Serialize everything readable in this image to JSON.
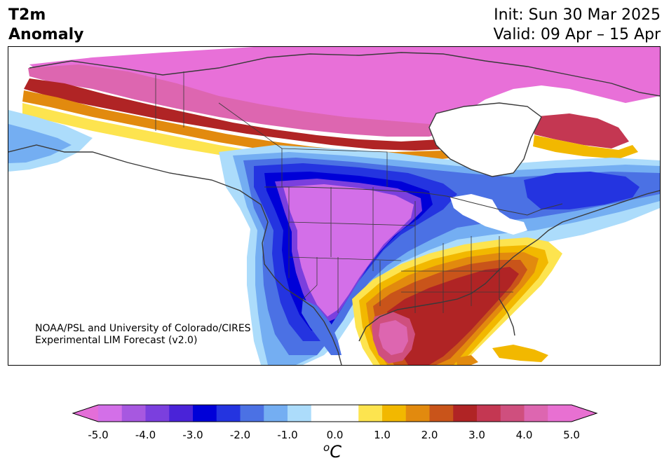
{
  "title": {
    "left": [
      "T2m",
      "Anomaly"
    ],
    "right": [
      "Init: Sun 30 Mar 2025",
      "Valid: 09 Apr – 15 Apr"
    ]
  },
  "credit": [
    "NOAA/PSL and University of Colorado/CIRES",
    "Experimental LIM Forecast (v2.0)"
  ],
  "colorbar": {
    "units_symbol": "o",
    "units_letter": "C",
    "ticks": [
      "-5.0",
      "-4.0",
      "-3.0",
      "-2.0",
      "-1.0",
      "0.0",
      "1.0",
      "2.0",
      "3.0",
      "4.0",
      "5.0"
    ],
    "levels": [
      -5.0,
      -4.5,
      -4.0,
      -3.5,
      -3.0,
      -2.5,
      -2.0,
      -1.5,
      -1.0,
      -0.5,
      0.5,
      1.0,
      1.5,
      2.0,
      2.5,
      3.0,
      3.5,
      4.0,
      4.5,
      5.0
    ],
    "colors": [
      "#d36fe8",
      "#a758e0",
      "#7b3fde",
      "#4a23d8",
      "#0000d8",
      "#2434e0",
      "#4b71e4",
      "#74aef2",
      "#acdcfb",
      "#ffffff",
      "#fde44f",
      "#f2b800",
      "#e28a0e",
      "#c9541a",
      "#b02425",
      "#c43752",
      "#cf4f7e",
      "#dd66b0",
      "#e870d2"
    ],
    "under_color": "#e46ed8",
    "over_color": "#e870d2"
  },
  "map": {
    "land_color": "#ffffff",
    "boundary_color": "#3a3a3a",
    "colors": {
      "pink": "#e870d8",
      "magenta": "#dd66b0",
      "rose": "#cf4f7e",
      "crimson": "#c43752",
      "red": "#b02425",
      "rust": "#c9541a",
      "orange": "#e28a0e",
      "gold": "#f2b800",
      "yellow": "#fde44f",
      "pale_blue": "#acdcfb",
      "light_blue": "#74aef2",
      "blue": "#4b71e4",
      "royal_blue": "#2434e0",
      "deep_blue": "#0000d8",
      "indigo": "#4a23d8",
      "violet": "#7b3fde",
      "purple": "#a758e0",
      "lilac": "#d36fe8"
    }
  }
}
